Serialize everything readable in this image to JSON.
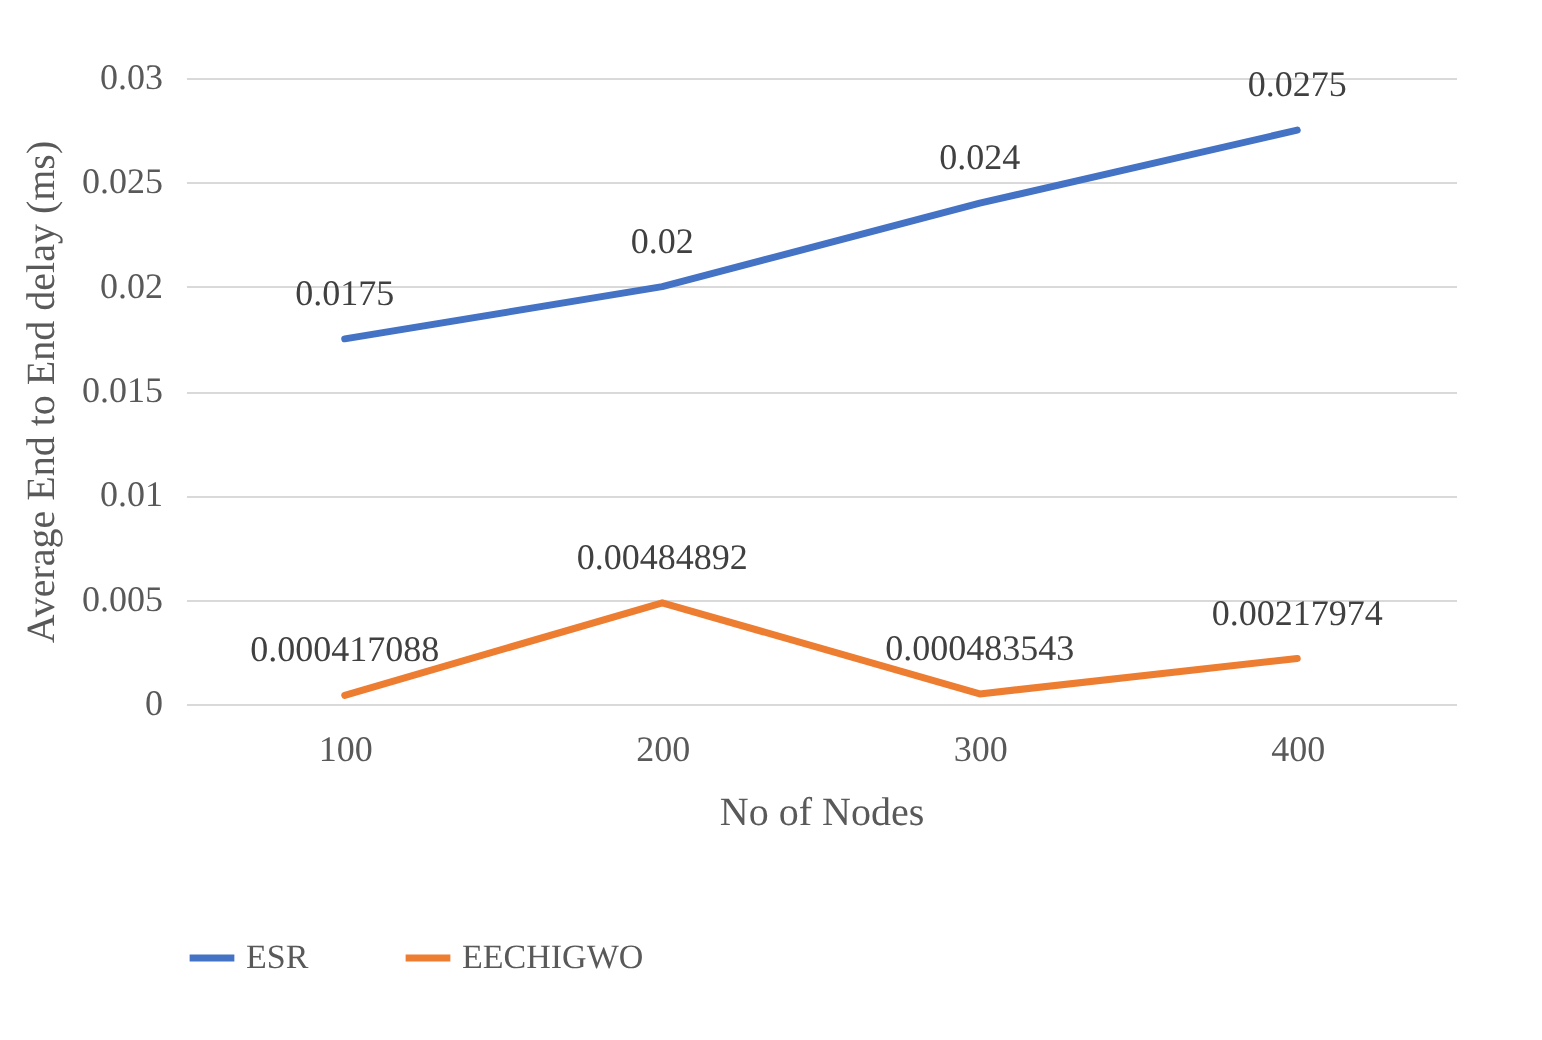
{
  "chart_data": {
    "type": "line",
    "xlabel": "No of Nodes",
    "ylabel": "Average  End to End delay (ms)",
    "categories": [
      "100",
      "200",
      "300",
      "400"
    ],
    "series": [
      {
        "name": "ESR",
        "color": "#4472c4",
        "values": [
          0.0175,
          0.02,
          0.024,
          0.0275
        ]
      },
      {
        "name": "EECHIGWO",
        "color": "#ed7d31",
        "values": [
          0.000417088,
          0.00484892,
          0.000483543,
          0.00217974
        ]
      }
    ],
    "ylim": [
      0,
      0.03
    ],
    "yticks": [
      0,
      0.005,
      0.01,
      0.015,
      0.02,
      0.025,
      0.03
    ],
    "grid": "y",
    "legend": "bottom",
    "data_labels": true
  }
}
